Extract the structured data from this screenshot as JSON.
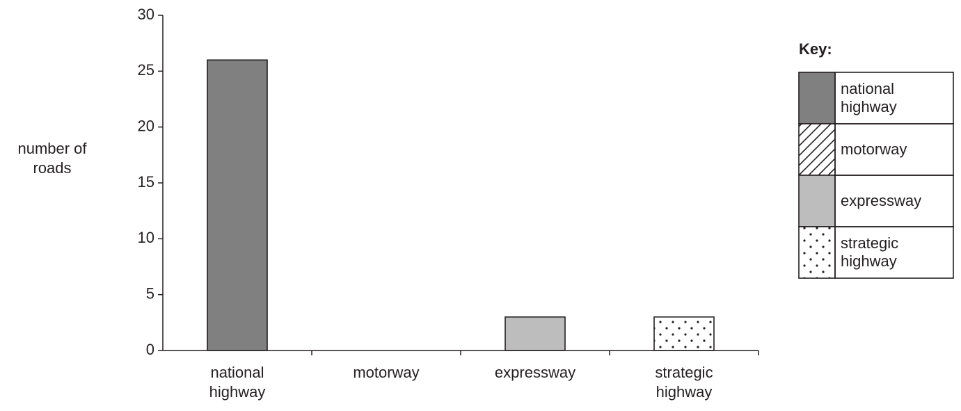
{
  "chart_data": {
    "type": "bar",
    "y_label": "number of roads",
    "categories": [
      "national highway",
      "motorway",
      "expressway",
      "strategic highway"
    ],
    "values": [
      26,
      0,
      3,
      3
    ],
    "colors": [
      "#808080",
      "#ffffff",
      "#bdbdbd",
      "#ffffff"
    ],
    "patterns": [
      null,
      "hatch",
      null,
      "dots"
    ],
    "ylim": [
      0,
      30
    ],
    "yticks": [
      0,
      5,
      10,
      15,
      20,
      25,
      30
    ],
    "grid": false,
    "legend_title": "Key:",
    "legend_position": "right"
  }
}
